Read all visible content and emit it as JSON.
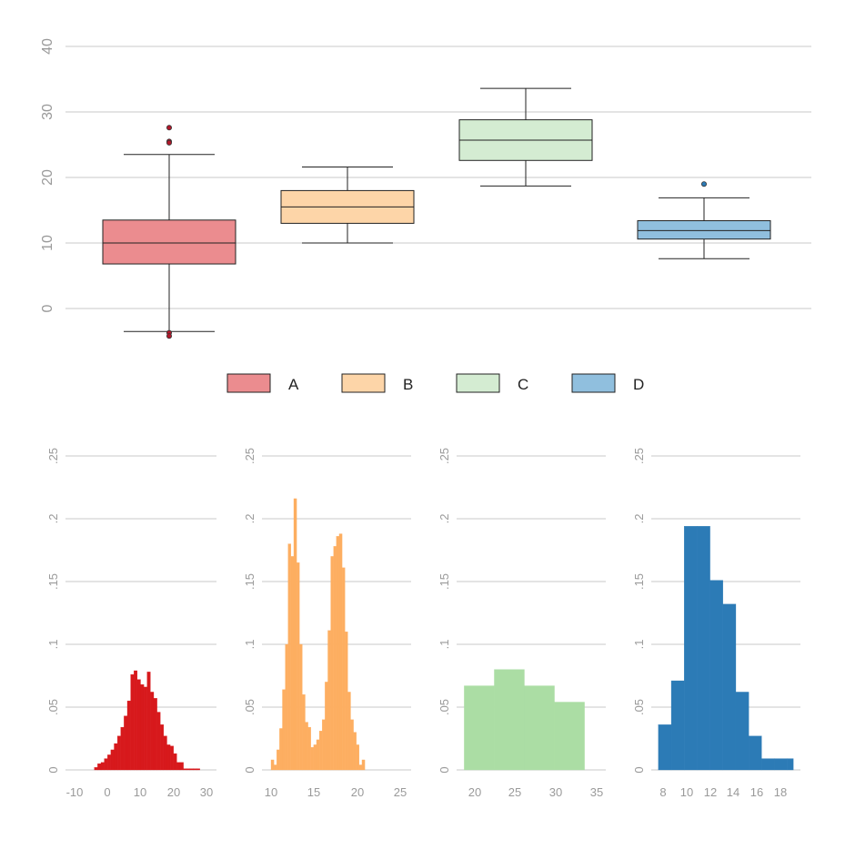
{
  "chart_data": [
    {
      "type": "box",
      "yticks": [
        "0",
        "10",
        "20",
        "30",
        "40"
      ],
      "ylim": [
        -7,
        43
      ],
      "grid": true,
      "legend_position": "bottom",
      "series": [
        {
          "name": "A",
          "color": "#eb8c8f",
          "whisker_low": -3.5,
          "q1": 6.8,
          "median": 10.0,
          "q3": 13.5,
          "whisker_high": 23.5,
          "outliers": [
            27.6,
            25.5,
            25.3,
            -3.7,
            -4.2
          ]
        },
        {
          "name": "B",
          "color": "#fdd5a8",
          "whisker_low": 10.0,
          "q1": 13.0,
          "median": 15.5,
          "q3": 18.0,
          "whisker_high": 21.6,
          "outliers": []
        },
        {
          "name": "C",
          "color": "#d4ecd2",
          "whisker_low": 18.7,
          "q1": 22.6,
          "median": 25.7,
          "q3": 28.8,
          "whisker_high": 33.6,
          "outliers": []
        },
        {
          "name": "D",
          "color": "#90bfde",
          "whisker_low": 7.6,
          "q1": 10.6,
          "median": 11.9,
          "q3": 13.4,
          "whisker_high": 16.9,
          "outliers": [
            19.0
          ]
        }
      ]
    },
    {
      "type": "bar",
      "series_name": "A",
      "color": "#d7191c",
      "xlim": [
        -14,
        33
      ],
      "xticks": [
        "-10",
        "0",
        "10",
        "20",
        "30"
      ],
      "ylim": [
        0,
        0.25
      ],
      "yticks": [
        "0",
        ".05",
        ".1",
        ".15",
        ".2",
        ".25"
      ],
      "bin_width": 1,
      "bins": [
        [
          -4,
          -3,
          0.002
        ],
        [
          -3,
          -2,
          0.005
        ],
        [
          -2,
          -1,
          0.006
        ],
        [
          -1,
          0,
          0.009
        ],
        [
          0,
          1,
          0.012
        ],
        [
          1,
          2,
          0.016
        ],
        [
          2,
          3,
          0.021
        ],
        [
          3,
          4,
          0.027
        ],
        [
          4,
          5,
          0.034
        ],
        [
          5,
          6,
          0.043
        ],
        [
          6,
          7,
          0.055
        ],
        [
          7,
          8,
          0.076
        ],
        [
          8,
          9,
          0.079
        ],
        [
          9,
          10,
          0.072
        ],
        [
          10,
          11,
          0.068
        ],
        [
          11,
          12,
          0.066
        ],
        [
          12,
          13,
          0.078
        ],
        [
          13,
          14,
          0.062
        ],
        [
          14,
          15,
          0.057
        ],
        [
          15,
          16,
          0.046
        ],
        [
          16,
          17,
          0.036
        ],
        [
          17,
          18,
          0.027
        ],
        [
          18,
          19,
          0.02
        ],
        [
          19,
          20,
          0.019
        ],
        [
          20,
          21,
          0.013
        ],
        [
          21,
          22,
          0.006
        ],
        [
          22,
          23,
          0.006
        ],
        [
          23,
          24,
          0.001
        ],
        [
          24,
          25,
          0.001
        ],
        [
          25,
          26,
          0.001
        ],
        [
          26,
          27,
          0.001
        ],
        [
          27,
          28,
          0.001
        ]
      ]
    },
    {
      "type": "bar",
      "series_name": "B",
      "color": "#fdae61",
      "xlim": [
        9,
        26
      ],
      "xticks": [
        "10",
        "15",
        "20",
        "25"
      ],
      "ylim": [
        0,
        0.25
      ],
      "yticks": [
        "0",
        ".05",
        ".1",
        ".15",
        ".2",
        ".25"
      ],
      "bin_width": 0.33,
      "bins": [
        [
          10.0,
          10.33,
          0.008
        ],
        [
          10.33,
          10.66,
          0.004
        ],
        [
          10.66,
          10.99,
          0.016
        ],
        [
          10.99,
          11.32,
          0.033
        ],
        [
          11.32,
          11.65,
          0.064
        ],
        [
          11.65,
          11.98,
          0.1
        ],
        [
          11.98,
          12.31,
          0.18
        ],
        [
          12.31,
          12.64,
          0.17
        ],
        [
          12.64,
          12.97,
          0.216
        ],
        [
          12.97,
          13.3,
          0.165
        ],
        [
          13.3,
          13.63,
          0.1
        ],
        [
          13.63,
          13.96,
          0.06
        ],
        [
          13.96,
          14.29,
          0.038
        ],
        [
          14.29,
          14.62,
          0.034
        ],
        [
          14.62,
          14.95,
          0.018
        ],
        [
          14.95,
          15.28,
          0.02
        ],
        [
          15.28,
          15.61,
          0.024
        ],
        [
          15.61,
          15.94,
          0.031
        ],
        [
          15.94,
          16.27,
          0.04
        ],
        [
          16.27,
          16.6,
          0.07
        ],
        [
          16.6,
          16.93,
          0.111
        ],
        [
          16.93,
          17.26,
          0.17
        ],
        [
          17.26,
          17.59,
          0.178
        ],
        [
          17.59,
          17.92,
          0.186
        ],
        [
          17.92,
          18.25,
          0.188
        ],
        [
          18.25,
          18.58,
          0.161
        ],
        [
          18.58,
          18.91,
          0.11
        ],
        [
          18.91,
          19.24,
          0.062
        ],
        [
          19.24,
          19.57,
          0.04
        ],
        [
          19.57,
          19.9,
          0.03
        ],
        [
          19.9,
          20.23,
          0.02
        ],
        [
          20.23,
          20.56,
          0.004
        ],
        [
          20.56,
          20.89,
          0.008
        ]
      ]
    },
    {
      "type": "bar",
      "series_name": "C",
      "color": "#abdda4",
      "xlim": [
        17.5,
        36
      ],
      "xticks": [
        "20",
        "25",
        "30",
        "35"
      ],
      "ylim": [
        0,
        0.25
      ],
      "yticks": [
        "0",
        ".05",
        ".1",
        ".15",
        ".2",
        ".25"
      ],
      "bin_width": 3.7,
      "bins": [
        [
          18.7,
          22.4,
          0.067
        ],
        [
          22.4,
          26.1,
          0.08
        ],
        [
          26.1,
          29.8,
          0.067
        ],
        [
          29.8,
          33.5,
          0.054
        ]
      ]
    },
    {
      "type": "bar",
      "series_name": "D",
      "color": "#2c7bb6",
      "xlim": [
        6.8,
        19.8
      ],
      "xticks": [
        "8",
        "10",
        "12",
        "14",
        "16",
        "18"
      ],
      "ylim": [
        0,
        0.25
      ],
      "yticks": [
        "0",
        ".05",
        ".1",
        ".15",
        ".2",
        ".25"
      ],
      "bin_width": 1.1,
      "bins": [
        [
          7.6,
          8.7,
          0.036
        ],
        [
          8.7,
          9.8,
          0.071
        ],
        [
          9.8,
          10.9,
          0.194
        ],
        [
          10.9,
          12.0,
          0.194
        ],
        [
          12.0,
          13.1,
          0.151
        ],
        [
          13.1,
          14.2,
          0.132
        ],
        [
          14.2,
          15.3,
          0.062
        ],
        [
          15.3,
          16.4,
          0.027
        ],
        [
          16.4,
          17.5,
          0.009
        ],
        [
          17.5,
          18.6,
          0.009
        ],
        [
          18.6,
          19.1,
          0.009
        ]
      ]
    }
  ]
}
